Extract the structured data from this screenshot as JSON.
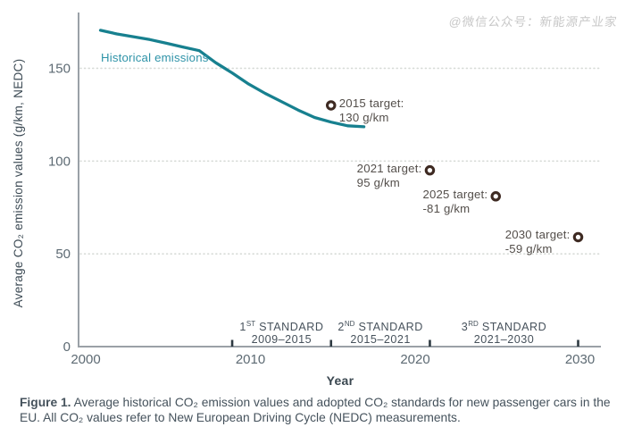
{
  "watermark": "@微信公众号：新能源产业家",
  "colors": {
    "line": "#17808f",
    "line_label": "#2e93a8",
    "marker_ring": "#3e2a22",
    "axis": "#9aa1a7",
    "axis_tick_text": "#5d6a73",
    "standard_tick": "#2e3a42",
    "grid": "#d7dbd7",
    "target_text": "#544f4b"
  },
  "chart_data": {
    "type": "line",
    "title": "",
    "xlabel": "Year",
    "ylabel": "Average CO₂ emission values (g/km, NEDC)",
    "line_label": "Historical emissions",
    "xlim": [
      1999.7,
      2031.5
    ],
    "ylim": [
      0,
      180
    ],
    "x_ticks": [
      2000,
      2010,
      2020,
      2030
    ],
    "y_ticks": [
      0,
      50,
      100,
      150
    ],
    "grid": "dotted horizontal lines at y = 50, 100, 150",
    "legend_position": "inline label on line",
    "series": [
      {
        "name": "Historical emissions",
        "x": [
          2001,
          2002,
          2003,
          2004,
          2005,
          2006,
          2007,
          2008,
          2009,
          2010,
          2011,
          2012,
          2013,
          2014,
          2015,
          2016,
          2017
        ],
        "values": [
          170.5,
          168.5,
          167,
          165.5,
          163.5,
          161.5,
          159.5,
          153,
          147.5,
          141.5,
          136.5,
          132,
          127.5,
          123.5,
          121,
          119,
          118.5
        ]
      }
    ],
    "targets": [
      {
        "year": 2015,
        "value": 130,
        "label": "2015 target:",
        "value_label": "130 g/km",
        "marker_side": "left"
      },
      {
        "year": 2021,
        "value": 95,
        "label": "2021 target:",
        "value_label": "95 g/km",
        "marker_side": "right"
      },
      {
        "year": 2025,
        "value": 81,
        "label": "2025 target:",
        "value_label": "-81 g/km",
        "marker_side": "right"
      },
      {
        "year": 2030,
        "value": 59,
        "label": "2030 target:",
        "value_label": "-59 g/km",
        "marker_side": "right"
      }
    ],
    "standards": [
      {
        "ordinal": "1",
        "suffix": "ST",
        "word": "STANDARD",
        "years": "2009–2015",
        "start_year": 2009,
        "end_year": 2015
      },
      {
        "ordinal": "2",
        "suffix": "ND",
        "word": "STANDARD",
        "years": "2015–2021",
        "start_year": 2015,
        "end_year": 2021
      },
      {
        "ordinal": "3",
        "suffix": "RD",
        "word": "STANDARD",
        "years": "2021–2030",
        "start_year": 2021,
        "end_year": 2030
      }
    ],
    "standard_boundary_ticks": [
      2009,
      2015,
      2021,
      2030
    ]
  },
  "caption": {
    "bold": "Figure 1.",
    "rest": " Average historical CO₂ emission values and adopted CO₂ standards for new passenger cars in the EU. All CO₂ values refer to New European Driving Cycle (NEDC) measurements."
  }
}
